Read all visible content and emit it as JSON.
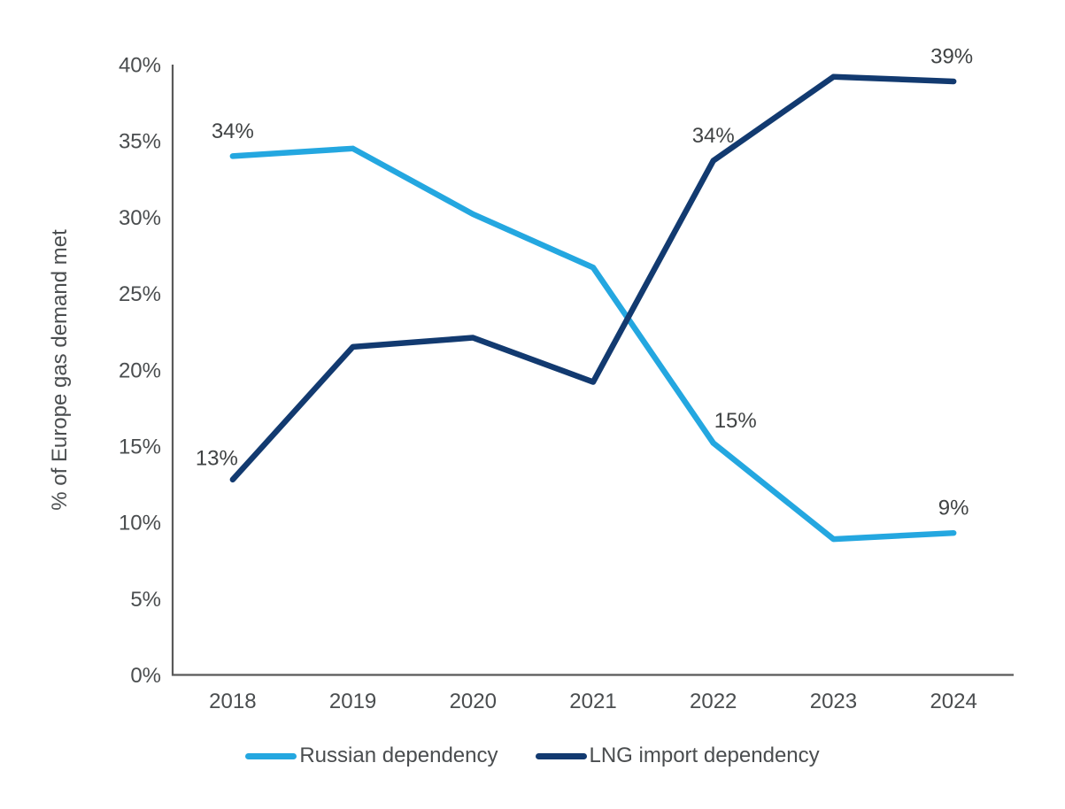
{
  "chart_data": {
    "type": "line",
    "title": "",
    "xlabel": "",
    "ylabel": "% of Europe gas demand met",
    "categories": [
      "2018",
      "2019",
      "2020",
      "2021",
      "2022",
      "2023",
      "2024"
    ],
    "ylim": [
      0,
      40
    ],
    "yticks": [
      0,
      5,
      10,
      15,
      20,
      25,
      30,
      35,
      40
    ],
    "ytick_labels": [
      "0%",
      "5%",
      "10%",
      "15%",
      "20%",
      "25%",
      "30%",
      "35%",
      "40%"
    ],
    "grid": false,
    "legend_position": "bottom-center",
    "axis_color": "#595959",
    "text_color": "#4a4d4f",
    "series": [
      {
        "name": "Russian dependency",
        "color": "#24a7e0",
        "values": [
          34.0,
          34.5,
          30.2,
          26.7,
          15.2,
          8.9,
          9.3
        ],
        "point_labels": [
          {
            "index": 0,
            "text": "34%",
            "dx": 0,
            "dy": -29
          },
          {
            "index": 4,
            "text": "15%",
            "dx": 25,
            "dy": -26
          },
          {
            "index": 6,
            "text": "9%",
            "dx": 0,
            "dy": -29
          }
        ]
      },
      {
        "name": "LNG import dependency",
        "color": "#123a70",
        "values": [
          12.8,
          21.5,
          22.1,
          19.2,
          33.7,
          39.2,
          38.9
        ],
        "point_labels": [
          {
            "index": 0,
            "text": "13%",
            "dx": -18,
            "dy": -25
          },
          {
            "index": 4,
            "text": "34%",
            "dx": 0,
            "dy": -29
          },
          {
            "index": 6,
            "text": "39%",
            "dx": -2,
            "dy": -29
          }
        ]
      }
    ]
  }
}
